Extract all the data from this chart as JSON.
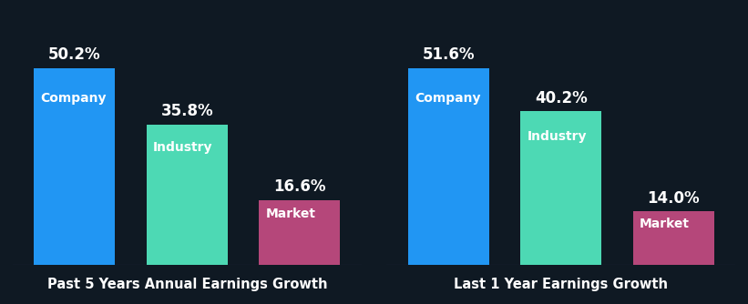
{
  "background_color": "#0f1923",
  "chart1": {
    "title": "Past 5 Years Annual Earnings Growth",
    "categories": [
      "Company",
      "Industry",
      "Market"
    ],
    "values": [
      50.2,
      35.8,
      16.6
    ],
    "colors": [
      "#2196f3",
      "#4dd9b4",
      "#b5477a"
    ],
    "labels": [
      "50.2%",
      "35.8%",
      "16.6%"
    ]
  },
  "chart2": {
    "title": "Last 1 Year Earnings Growth",
    "categories": [
      "Company",
      "Industry",
      "Market"
    ],
    "values": [
      51.6,
      40.2,
      14.0
    ],
    "colors": [
      "#2196f3",
      "#4dd9b4",
      "#b5477a"
    ],
    "labels": [
      "51.6%",
      "40.2%",
      "14.0%"
    ]
  },
  "text_color": "#ffffff",
  "title_color": "#ffffff",
  "bar_label_fontsize": 12,
  "category_label_fontsize": 10,
  "title_fontsize": 10.5,
  "bar_width": 0.72
}
